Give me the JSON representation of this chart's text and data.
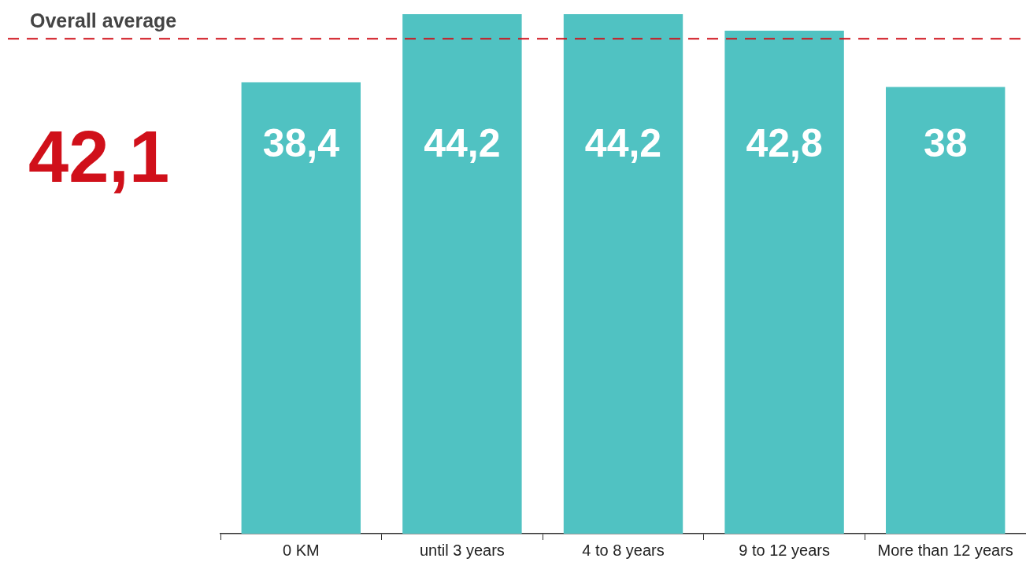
{
  "chart_data": {
    "type": "bar",
    "categories": [
      "0 KM",
      "until 3 years",
      "4 to 8 years",
      "9 to 12 years",
      "More than 12 years"
    ],
    "values": [
      38.4,
      44.2,
      44.2,
      42.8,
      38
    ],
    "value_labels": [
      "38,4",
      "44,2",
      "44,2",
      "42,8",
      "38"
    ],
    "color": "#50c2c2",
    "ylim": [
      0,
      44.2
    ],
    "tick_labels": "x",
    "ref_lines": [
      {
        "axis": "y",
        "value": 42.1,
        "label": "Overall average",
        "color": "#d0101a",
        "line_style": "dashed"
      }
    ],
    "annotations": [
      {
        "text": "42,1",
        "y": 42.1
      }
    ]
  }
}
